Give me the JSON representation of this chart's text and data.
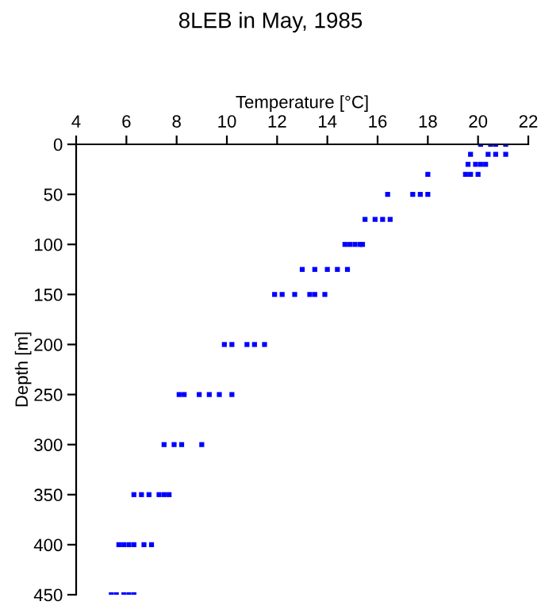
{
  "chart_data": {
    "type": "scatter",
    "title": "8LEB in May, 1985",
    "xlabel": "Temperature [°C]",
    "ylabel": "Depth [m]",
    "series": [
      {
        "color": "#0000ff",
        "x": [
          20.1,
          20.5,
          20.7,
          21.1,
          19.7,
          20.4,
          20.7,
          21.1,
          19.6,
          19.9,
          20.1,
          20.3,
          19.5,
          19.7,
          20.0,
          18.0,
          16.4,
          17.4,
          17.7,
          18.0,
          15.5,
          15.9,
          16.2,
          16.5,
          14.7,
          14.9,
          15.1,
          15.3,
          15.4,
          13.0,
          13.5,
          14.0,
          14.4,
          14.8,
          11.9,
          12.2,
          12.7,
          13.3,
          13.5,
          13.9,
          9.9,
          10.2,
          10.8,
          11.1,
          11.5,
          8.1,
          8.3,
          8.9,
          9.3,
          9.7,
          10.2,
          7.5,
          7.9,
          8.2,
          9.0,
          6.3,
          6.6,
          6.9,
          7.3,
          7.5,
          7.7,
          5.7,
          5.9,
          6.1,
          6.3,
          6.7,
          7.0,
          5.4,
          5.6,
          5.9,
          6.1,
          6.3
        ],
        "values": [
          0,
          0,
          0,
          0,
          10,
          10,
          10,
          10,
          20,
          20,
          20,
          20,
          30,
          30,
          30,
          30,
          50,
          50,
          50,
          50,
          75,
          75,
          75,
          75,
          100,
          100,
          100,
          100,
          100,
          125,
          125,
          125,
          125,
          125,
          150,
          150,
          150,
          150,
          150,
          150,
          200,
          200,
          200,
          200,
          200,
          250,
          250,
          250,
          250,
          250,
          250,
          300,
          300,
          300,
          300,
          350,
          350,
          350,
          350,
          350,
          350,
          400,
          400,
          400,
          400,
          400,
          400,
          450,
          450,
          450,
          450,
          450
        ]
      }
    ],
    "marker": "square",
    "xlim": [
      4,
      22
    ],
    "xticks": [
      4,
      6,
      8,
      10,
      12,
      14,
      16,
      18,
      20,
      22
    ],
    "ylim": [
      450,
      0
    ],
    "yticks": [
      0,
      50,
      100,
      150,
      200,
      250,
      300,
      350,
      400,
      450
    ],
    "grid": false,
    "legend": false
  }
}
